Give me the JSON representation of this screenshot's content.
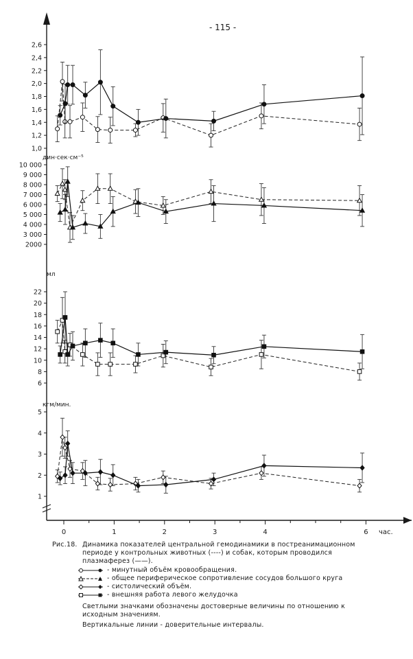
{
  "page_number": "- 115 -",
  "chart_data": [
    {
      "type": "line",
      "ylim": [
        1.0,
        2.6
      ],
      "yticks": [
        "2,6",
        "2,4",
        "2,2",
        "2,0",
        "1,8",
        "1,6",
        "1,4",
        "1,2",
        "1,0"
      ],
      "ylabel": "",
      "x": [
        -0.1,
        0,
        0.05,
        0.15,
        0.4,
        0.7,
        0.95,
        1.45,
        2.0,
        2.95,
        3.95,
        5.9
      ],
      "series": [
        {
          "marker": "open-circle",
          "style": "dashed",
          "values": [
            1.3,
            2.03,
            1.41,
            1.41,
            1.48,
            1.29,
            1.28,
            1.28,
            1.47,
            1.2,
            1.5,
            1.37
          ],
          "err": [
            0.2,
            0.3,
            0.25,
            0.25,
            0.22,
            0.2,
            0.2,
            0.1,
            0.22,
            0.18,
            0.2,
            0.25
          ]
        },
        {
          "marker": "filled-circle",
          "style": "solid",
          "values": [
            1.51,
            1.69,
            1.98,
            1.98,
            1.82,
            2.02,
            1.65,
            1.4,
            1.46,
            1.42,
            1.68,
            1.81
          ],
          "err": [
            0.15,
            0.3,
            0.3,
            0.3,
            0.2,
            0.5,
            0.3,
            0.2,
            0.3,
            0.15,
            0.3,
            0.6
          ]
        }
      ]
    },
    {
      "type": "line",
      "ylim": [
        2000,
        10000
      ],
      "yticks": [
        "10 000",
        "9 000",
        "8 000",
        "7 000",
        "6 000",
        "5 000",
        "4 000",
        "3 000",
        "2000"
      ],
      "ylabel": "дин·сек·см⁻⁵",
      "x": [
        -0.1,
        0,
        0.05,
        0.15,
        0.4,
        0.7,
        0.95,
        1.45,
        2.0,
        2.95,
        3.95,
        5.9
      ],
      "series": [
        {
          "marker": "open-triangle",
          "style": "dashed",
          "values": [
            7100,
            8100,
            7500,
            3700,
            6400,
            7600,
            7600,
            6300,
            5900,
            7300,
            6500,
            6400
          ],
          "err": [
            800,
            1500,
            1000,
            1500,
            1000,
            1500,
            1500,
            1200,
            900,
            1200,
            1600,
            1500
          ]
        },
        {
          "marker": "filled-triangle",
          "style": "solid",
          "values": [
            5200,
            5500,
            8300,
            3700,
            4100,
            3800,
            5300,
            6200,
            5300,
            6100,
            5900,
            5400
          ],
          "err": [
            900,
            1500,
            1500,
            1200,
            1000,
            1200,
            1500,
            1400,
            1200,
            1800,
            1800,
            1600
          ]
        }
      ]
    },
    {
      "type": "line",
      "ylim": [
        6,
        22
      ],
      "yticks": [
        "22",
        "20",
        "18",
        "16",
        "14",
        "12",
        "10",
        "8",
        "6"
      ],
      "ylabel": "мл",
      "x": [
        -0.1,
        0,
        0.05,
        0.15,
        0.4,
        0.7,
        0.95,
        1.45,
        2.0,
        2.95,
        3.95,
        5.9
      ],
      "series": [
        {
          "marker": "open-square",
          "style": "dashed",
          "values": [
            15.0,
            17.0,
            11.5,
            12.7,
            11.0,
            9.3,
            9.3,
            9.3,
            10.8,
            8.8,
            11.0,
            8.0
          ],
          "err": [
            2.0,
            4.0,
            2.0,
            2.0,
            2.0,
            2.0,
            2.0,
            1.5,
            2.0,
            1.5,
            2.5,
            1.5
          ]
        },
        {
          "marker": "filled-square",
          "style": "solid",
          "values": [
            11.0,
            17.5,
            11.0,
            12.5,
            13.0,
            13.5,
            13.0,
            11.0,
            11.4,
            10.9,
            12.4,
            11.5
          ],
          "err": [
            1.5,
            4.5,
            2.0,
            2.5,
            2.5,
            3.0,
            2.5,
            2.0,
            2.0,
            1.5,
            2.0,
            3.0
          ]
        }
      ]
    },
    {
      "type": "line",
      "ylim": [
        1,
        5
      ],
      "yticks": [
        "5",
        "4",
        "3",
        "2",
        "1"
      ],
      "ylabel": "кгм/мин.",
      "x": [
        -0.1,
        0,
        0.05,
        0.15,
        0.4,
        0.7,
        0.95,
        1.45,
        2.0,
        2.95,
        3.95,
        5.9
      ],
      "series": [
        {
          "marker": "open-diamond",
          "style": "dashed",
          "values": [
            1.95,
            3.8,
            3.3,
            2.3,
            2.2,
            1.6,
            1.55,
            1.6,
            1.9,
            1.6,
            2.1,
            1.5
          ],
          "err": [
            0.3,
            0.9,
            0.5,
            0.4,
            0.4,
            0.3,
            0.3,
            0.3,
            0.3,
            0.25,
            0.3,
            0.3
          ]
        },
        {
          "marker": "filled-diamond",
          "style": "solid",
          "values": [
            1.85,
            2.0,
            3.5,
            2.1,
            2.1,
            2.15,
            2.0,
            1.5,
            1.55,
            1.8,
            2.45,
            2.35
          ],
          "err": [
            0.3,
            0.4,
            0.6,
            0.5,
            0.6,
            0.6,
            0.5,
            0.3,
            0.4,
            0.3,
            0.5,
            0.7
          ]
        }
      ]
    }
  ],
  "x_axis": {
    "ticks": [
      "0",
      "1",
      "2",
      "3",
      "4",
      "6"
    ],
    "unit": "час."
  },
  "caption": {
    "figure_label": "Рис.18.",
    "line1": "Динамика показателей центральной гемодинамики в постреанимационном",
    "line2": "периоде у контрольных животных (----) и собак, которым проводился",
    "line3": "плазмаферез (——)."
  },
  "legend": [
    {
      "marker": "circle",
      "text": "- минутный объём кровообращения."
    },
    {
      "marker": "triangle",
      "text": "- общее периферическое сопротивление сосудов большого круга"
    },
    {
      "marker": "diamond",
      "text": "- систолический объём."
    },
    {
      "marker": "square",
      "text": "- внешняя работа левого желудочка"
    }
  ],
  "notes": {
    "note1_line1": "Светлыми значками обозначены достоверные величины по отношению к",
    "note1_line2": "исходным значениям.",
    "note2": "Вертикальные линии - доверительные интервалы."
  }
}
